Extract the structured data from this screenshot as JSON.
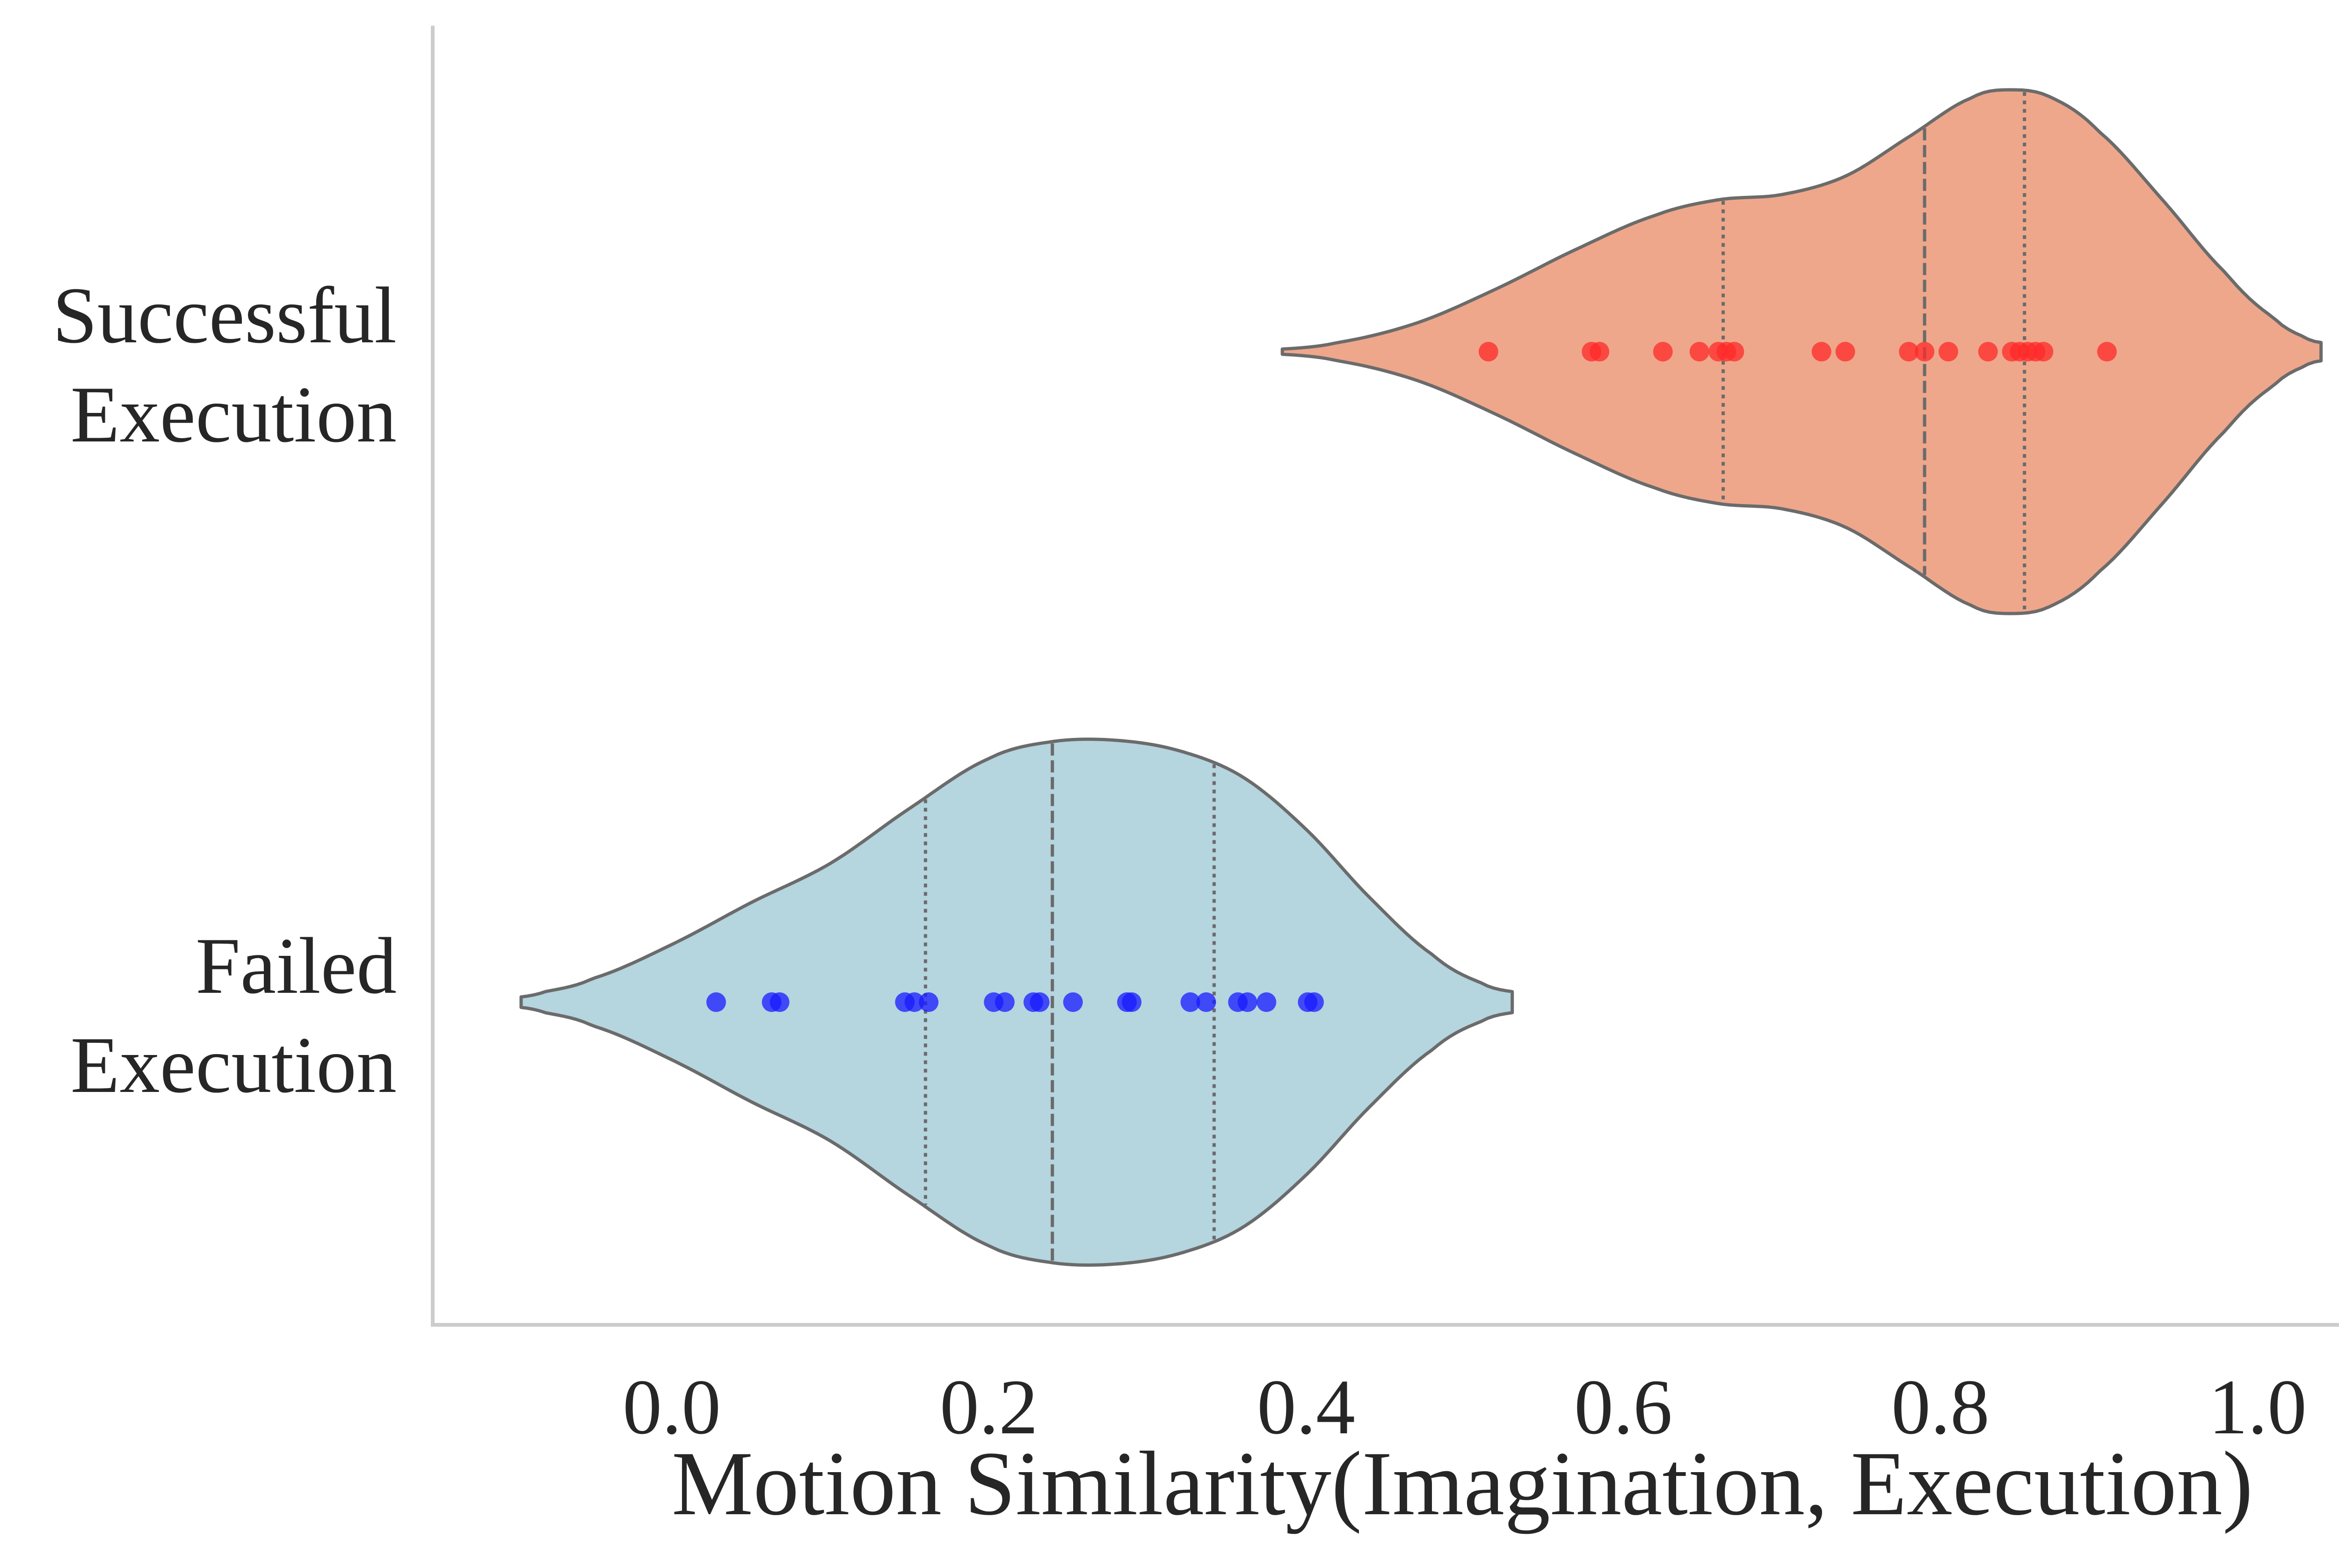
{
  "chart_data": {
    "type": "violin",
    "orientation": "horizontal",
    "xlabel": "Motion Similarity(Imagination, Execution)",
    "ylabel": "",
    "xlim": [
      -0.15,
      1.09
    ],
    "xticks": [
      {
        "value": 0.0,
        "label": "0.0"
      },
      {
        "value": 0.2,
        "label": "0.2"
      },
      {
        "value": 0.4,
        "label": "0.4"
      },
      {
        "value": 0.6,
        "label": "0.6"
      },
      {
        "value": 0.8,
        "label": "0.8"
      },
      {
        "value": 1.0,
        "label": "1.0"
      }
    ],
    "grid": false,
    "categories": [
      {
        "label_lines": [
          "Successful",
          "Execution"
        ],
        "fill_color": "#eea78b",
        "point_color": "#ff2a2a",
        "range": [
          0.385,
          1.04
        ],
        "quartiles": [
          0.663,
          0.79,
          0.853
        ],
        "density": [
          [
            0.385,
            0.01
          ],
          [
            0.42,
            0.035
          ],
          [
            0.47,
            0.11
          ],
          [
            0.52,
            0.24
          ],
          [
            0.57,
            0.39
          ],
          [
            0.62,
            0.52
          ],
          [
            0.66,
            0.58
          ],
          [
            0.7,
            0.6
          ],
          [
            0.74,
            0.67
          ],
          [
            0.78,
            0.82
          ],
          [
            0.82,
            0.97
          ],
          [
            0.845,
            1.0
          ],
          [
            0.87,
            0.97
          ],
          [
            0.9,
            0.84
          ],
          [
            0.94,
            0.58
          ],
          [
            0.98,
            0.3
          ],
          [
            1.01,
            0.13
          ],
          [
            1.03,
            0.055
          ],
          [
            1.04,
            0.035
          ]
        ],
        "points": [
          0.515,
          0.58,
          0.585,
          0.625,
          0.648,
          0.66,
          0.665,
          0.67,
          0.725,
          0.74,
          0.78,
          0.79,
          0.805,
          0.83,
          0.845,
          0.85,
          0.855,
          0.86,
          0.865,
          0.905
        ]
      },
      {
        "label_lines": [
          "Failed",
          "Execution"
        ],
        "fill_color": "#b5d5df",
        "point_color": "#1a1aff",
        "range": [
          -0.095,
          0.53
        ],
        "quartiles": [
          0.16,
          0.24,
          0.342
        ],
        "density": [
          [
            -0.095,
            0.02
          ],
          [
            -0.08,
            0.04
          ],
          [
            -0.05,
            0.09
          ],
          [
            0.0,
            0.22
          ],
          [
            0.05,
            0.38
          ],
          [
            0.1,
            0.53
          ],
          [
            0.15,
            0.74
          ],
          [
            0.2,
            0.93
          ],
          [
            0.24,
            0.995
          ],
          [
            0.28,
            1.0
          ],
          [
            0.32,
            0.96
          ],
          [
            0.36,
            0.86
          ],
          [
            0.4,
            0.66
          ],
          [
            0.44,
            0.4
          ],
          [
            0.48,
            0.18
          ],
          [
            0.51,
            0.075
          ],
          [
            0.53,
            0.04
          ]
        ],
        "points": [
          0.028,
          0.063,
          0.068,
          0.147,
          0.153,
          0.162,
          0.203,
          0.21,
          0.228,
          0.232,
          0.253,
          0.287,
          0.29,
          0.327,
          0.337,
          0.357,
          0.363,
          0.375,
          0.401,
          0.405
        ]
      }
    ],
    "colors": {
      "violin_edge": "#6b6b6b",
      "axis_line": "#cccccc",
      "text": "#262626"
    }
  }
}
